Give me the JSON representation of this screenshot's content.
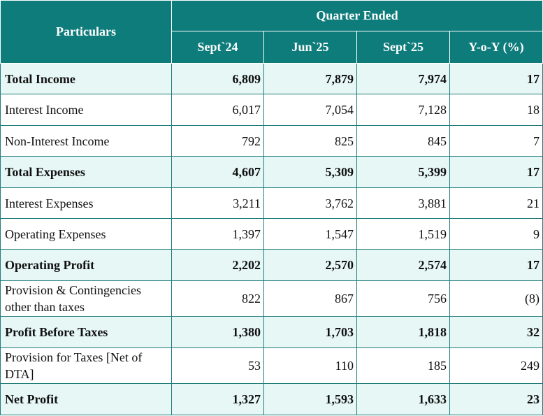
{
  "header": {
    "particulars": "Particulars",
    "quarter_ended": "Quarter Ended",
    "columns": [
      "Sept`24",
      "Jun`25",
      "Sept`25",
      "Y-o-Y (%)"
    ]
  },
  "rows": [
    {
      "label": "Total Income",
      "values": [
        "6,809",
        "7,879",
        "7,974",
        "17"
      ],
      "bold": true
    },
    {
      "label": "Interest Income",
      "values": [
        "6,017",
        "7,054",
        "7,128",
        "18"
      ],
      "bold": false
    },
    {
      "label": "Non-Interest Income",
      "values": [
        "792",
        "825",
        "845",
        "7"
      ],
      "bold": false
    },
    {
      "label": "Total Expenses",
      "values": [
        "4,607",
        "5,309",
        "5,399",
        "17"
      ],
      "bold": true
    },
    {
      "label": "Interest Expenses",
      "values": [
        "3,211",
        "3,762",
        "3,881",
        "21"
      ],
      "bold": false
    },
    {
      "label": "Operating Expenses",
      "values": [
        "1,397",
        "1,547",
        "1,519",
        "9"
      ],
      "bold": false
    },
    {
      "label": "Operating Profit",
      "values": [
        "2,202",
        "2,570",
        "2,574",
        "17"
      ],
      "bold": true
    },
    {
      "label": "Provision & Contingencies other than taxes",
      "values": [
        "822",
        "867",
        "756",
        "(8)"
      ],
      "bold": false
    },
    {
      "label": "Profit Before Taxes",
      "values": [
        "1,380",
        "1,703",
        "1,818",
        "32"
      ],
      "bold": true
    },
    {
      "label": "Provision for Taxes [Net of DTA]",
      "values": [
        "53",
        "110",
        "185",
        "249"
      ],
      "bold": false
    },
    {
      "label": "Net Profit",
      "values": [
        "1,327",
        "1,593",
        "1,633",
        "23"
      ],
      "bold": true
    }
  ]
}
